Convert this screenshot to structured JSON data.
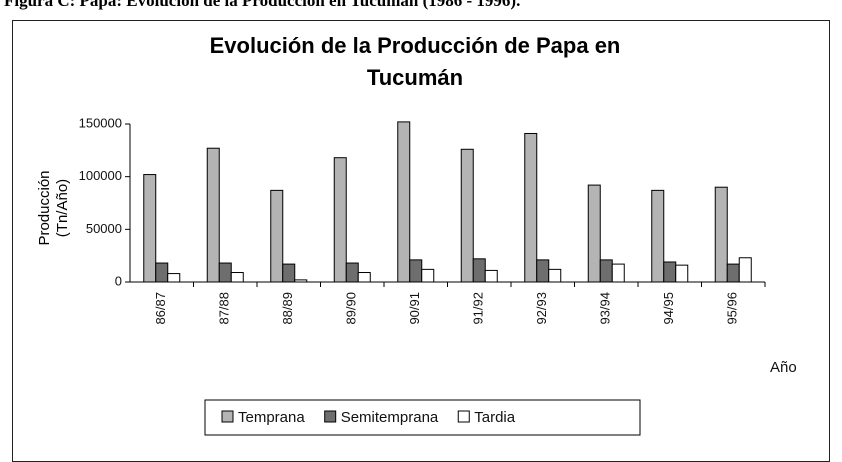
{
  "caption": "Figura C: Papa: Evolución de la Producción en Tucumán (1986 - 1996).",
  "chart_data": {
    "type": "bar",
    "title": "Evolución de la Producción de Papa en Tucumán",
    "y_label": "Producción (Tn/Año)",
    "x_label": "Año",
    "categories": [
      "86/87",
      "87/88",
      "88/89",
      "89/90",
      "90/91",
      "91/92",
      "92/93",
      "93/94",
      "94/95",
      "95/96"
    ],
    "series": [
      {
        "name": "Temprana",
        "color": "#b4b4b4",
        "values": [
          102000,
          127000,
          87000,
          118000,
          152000,
          126000,
          141000,
          92000,
          87000,
          90000
        ]
      },
      {
        "name": "Semitemprana",
        "color": "#6e6e6e",
        "values": [
          18000,
          18000,
          17000,
          18000,
          21000,
          22000,
          21000,
          21000,
          19000,
          17000
        ]
      },
      {
        "name": "Tardia",
        "color": "#ffffff",
        "values": [
          8000,
          9000,
          2000,
          9000,
          12000,
          11000,
          12000,
          17000,
          16000,
          23000
        ]
      }
    ],
    "ylim": [
      0,
      150000
    ],
    "yticks": [
      0,
      50000,
      100000,
      150000
    ],
    "grid": false,
    "legend": "bottom"
  }
}
